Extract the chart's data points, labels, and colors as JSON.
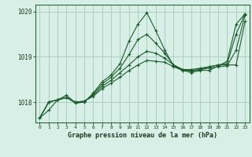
{
  "background_color": "#d8efe8",
  "grid_color": "#aacfbf",
  "line_color": "#1a5c2a",
  "xlabel": "Graphe pression niveau de la mer (hPa)",
  "ylim": [
    1017.55,
    1020.15
  ],
  "xlim": [
    -0.5,
    23.5
  ],
  "yticks": [
    1018,
    1019,
    1020
  ],
  "xticks": [
    0,
    1,
    2,
    3,
    4,
    5,
    6,
    7,
    8,
    9,
    10,
    11,
    12,
    13,
    14,
    15,
    16,
    17,
    18,
    19,
    20,
    21,
    22,
    23
  ],
  "series": [
    {
      "x": [
        0,
        1,
        2,
        3,
        4,
        5,
        6,
        7,
        8,
        9,
        10,
        11,
        12,
        13,
        14,
        15,
        16,
        17,
        18,
        19,
        20,
        21,
        22,
        23
      ],
      "y": [
        1017.65,
        1017.82,
        1018.05,
        1018.15,
        1017.98,
        1018.0,
        1018.2,
        1018.45,
        1018.6,
        1018.85,
        1019.35,
        1019.72,
        1019.97,
        1019.58,
        1019.15,
        1018.8,
        1018.7,
        1018.65,
        1018.7,
        1018.7,
        1018.8,
        1018.9,
        1019.72,
        1019.95
      ]
    },
    {
      "x": [
        0,
        1,
        2,
        3,
        4,
        5,
        6,
        7,
        8,
        9,
        10,
        11,
        12,
        13,
        14,
        15,
        16,
        17,
        18,
        19,
        20,
        21,
        22,
        23
      ],
      "y": [
        1017.65,
        1018.0,
        1018.05,
        1018.1,
        1017.98,
        1018.0,
        1018.18,
        1018.4,
        1018.55,
        1018.75,
        1019.05,
        1019.38,
        1019.5,
        1019.3,
        1019.08,
        1018.82,
        1018.72,
        1018.68,
        1018.72,
        1018.78,
        1018.82,
        1018.82,
        1018.82,
        1019.78
      ]
    },
    {
      "x": [
        0,
        1,
        2,
        3,
        4,
        5,
        6,
        7,
        8,
        9,
        10,
        11,
        12,
        13,
        14,
        15,
        16,
        17,
        18,
        19,
        20,
        21,
        22,
        23
      ],
      "y": [
        1017.65,
        1018.0,
        1018.05,
        1018.1,
        1018.0,
        1018.02,
        1018.15,
        1018.35,
        1018.48,
        1018.65,
        1018.82,
        1019.0,
        1019.12,
        1019.08,
        1018.97,
        1018.82,
        1018.72,
        1018.72,
        1018.75,
        1018.78,
        1018.82,
        1018.85,
        1019.5,
        1019.95
      ]
    },
    {
      "x": [
        0,
        1,
        2,
        3,
        4,
        5,
        6,
        7,
        8,
        9,
        10,
        11,
        12,
        13,
        14,
        15,
        16,
        17,
        18,
        19,
        20,
        21,
        22,
        23
      ],
      "y": [
        1017.65,
        1018.0,
        1018.05,
        1018.1,
        1018.0,
        1018.02,
        1018.13,
        1018.3,
        1018.42,
        1018.55,
        1018.7,
        1018.82,
        1018.92,
        1018.9,
        1018.88,
        1018.78,
        1018.7,
        1018.7,
        1018.72,
        1018.75,
        1018.78,
        1018.8,
        1019.15,
        1019.92
      ]
    }
  ]
}
